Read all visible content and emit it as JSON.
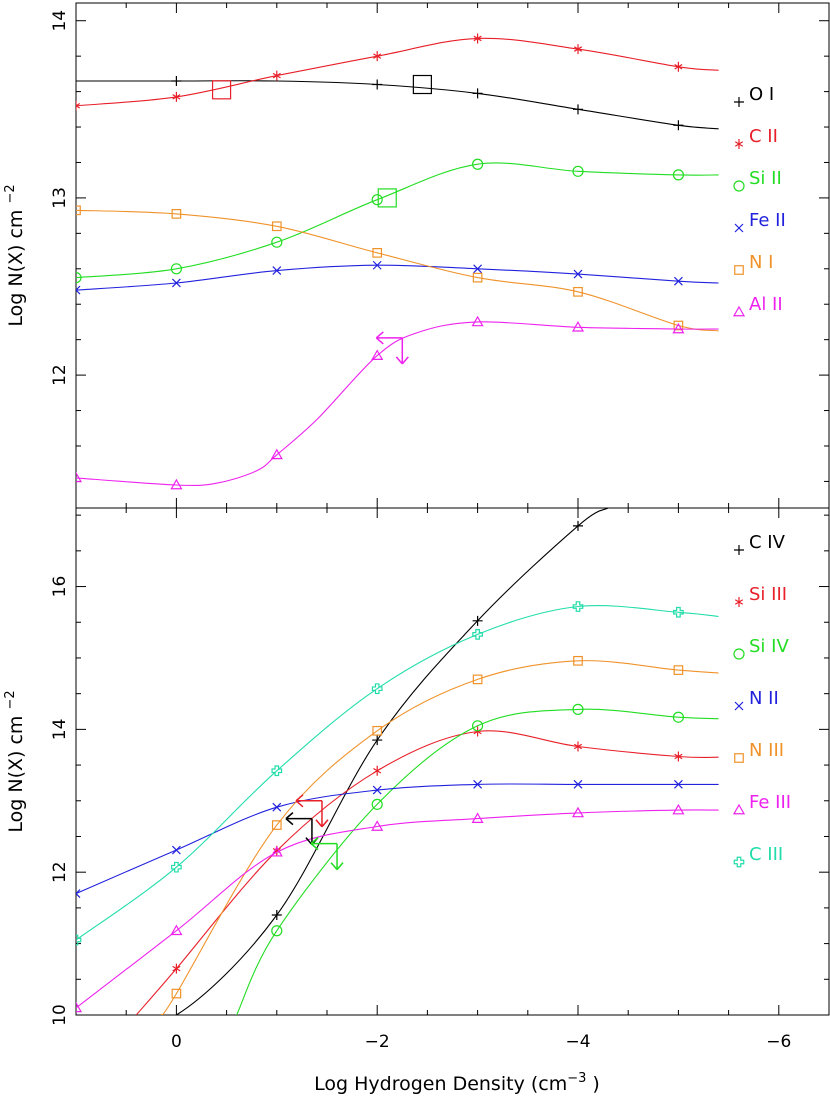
{
  "chart_data": [
    {
      "type": "line",
      "panel": "top",
      "ylabel": "Log N(X) cm",
      "ylabel_exponent": "−2",
      "xlim": [
        1,
        -6.5
      ],
      "ylim": [
        11.25,
        14.1
      ],
      "x_ticks": [
        0,
        -2,
        -4,
        -6
      ],
      "y_tick_labels": [
        {
          "value": 12,
          "label": "12"
        },
        {
          "value": 13,
          "label": "13"
        },
        {
          "value": 14,
          "label": "14"
        }
      ],
      "y_minor_step": 0.2,
      "series": [
        {
          "name": "O I",
          "label": "O I",
          "marker": "plus",
          "color": "#000000",
          "x": [
            1,
            0,
            -1,
            -2,
            -3,
            -4,
            -5,
            -5.4
          ],
          "y": [
            13.66,
            13.66,
            13.66,
            13.64,
            13.59,
            13.5,
            13.41,
            13.39
          ],
          "mark_x": [
            0,
            -2,
            -3,
            -4,
            -5
          ]
        },
        {
          "name": "C II",
          "label": "C II",
          "marker": "asterisk",
          "color": "#e8202a",
          "x": [
            1,
            0,
            -1,
            -2,
            -3,
            -4,
            -5,
            -5.4
          ],
          "y": [
            13.52,
            13.57,
            13.69,
            13.8,
            13.9,
            13.84,
            13.74,
            13.72
          ],
          "mark_x": [
            1,
            0,
            -1,
            -2,
            -3,
            -4,
            -5
          ]
        },
        {
          "name": "Si II",
          "label": "Si II",
          "marker": "circle",
          "color": "#22dd22",
          "x": [
            1,
            0,
            -1,
            -2,
            -3,
            -4,
            -5,
            -5.4
          ],
          "y": [
            12.55,
            12.6,
            12.75,
            12.99,
            13.19,
            13.15,
            13.13,
            13.13
          ],
          "mark_x": [
            1,
            0,
            -1,
            -2,
            -3,
            -4,
            -5
          ]
        },
        {
          "name": "Fe II",
          "label": "Fe II",
          "marker": "cross",
          "color": "#2222dd",
          "x": [
            1,
            0,
            -1,
            -2,
            -3,
            -4,
            -5,
            -5.4
          ],
          "y": [
            12.48,
            12.52,
            12.59,
            12.62,
            12.6,
            12.57,
            12.53,
            12.52
          ],
          "mark_x": [
            1,
            0,
            -1,
            -2,
            -3,
            -4,
            -5
          ]
        },
        {
          "name": "N I",
          "label": "N I",
          "marker": "square",
          "color": "#f0922a",
          "x": [
            1,
            0,
            -1,
            -2,
            -3,
            -4,
            -5,
            -5.4
          ],
          "y": [
            12.93,
            12.91,
            12.84,
            12.69,
            12.55,
            12.47,
            12.28,
            12.25
          ],
          "mark_x": [
            1,
            0,
            -1,
            -2,
            -3,
            -4,
            -5
          ]
        },
        {
          "name": "Al II",
          "label": "Al II",
          "marker": "triangle",
          "color": "#ee22ee",
          "x": [
            1,
            0,
            -0.4,
            -0.8,
            -1,
            -1.4,
            -2,
            -2.4,
            -3,
            -4,
            -5,
            -5.4
          ],
          "y": [
            11.42,
            11.38,
            11.39,
            11.46,
            11.55,
            11.75,
            12.11,
            12.24,
            12.3,
            12.27,
            12.26,
            12.26
          ],
          "mark_x": [
            1,
            0,
            -1,
            -2,
            -3,
            -4,
            -5
          ]
        }
      ],
      "annotations": [
        {
          "type": "big-square",
          "x": -0.45,
          "y": 13.61,
          "color": "#e8202a"
        },
        {
          "type": "big-square",
          "x": -2.45,
          "y": 13.64,
          "color": "#000000"
        },
        {
          "type": "big-square",
          "x": -2.1,
          "y": 13.0,
          "color": "#22dd22"
        },
        {
          "type": "limit",
          "x": -2.25,
          "y": 12.21,
          "color": "#ee22ee"
        }
      ]
    },
    {
      "type": "line",
      "panel": "bottom",
      "xlabel": "Log Hydrogen Density (cm",
      "xlabel_exponent": "−3",
      "xlabel_close": " )",
      "ylabel": "Log N(X) cm",
      "ylabel_exponent": "−2",
      "xlim": [
        1,
        -6.5
      ],
      "ylim": [
        10,
        17.1
      ],
      "x_ticks": [
        0,
        -2,
        -4,
        -6
      ],
      "x_tick_labels": [
        "0",
        "−2",
        "−4",
        "−6"
      ],
      "y_tick_labels": [
        {
          "value": 10,
          "label": "10"
        },
        {
          "value": 12,
          "label": "12"
        },
        {
          "value": 14,
          "label": "14"
        },
        {
          "value": 16,
          "label": "16"
        }
      ],
      "y_minor_step": 0.5,
      "series": [
        {
          "name": "C IV",
          "label": "C IV",
          "marker": "plus",
          "color": "#000000",
          "x": [
            0.6,
            0,
            -1,
            -2,
            -3,
            -4,
            -4.3
          ],
          "y": [
            10,
            10,
            11.4,
            13.85,
            15.52,
            16.85,
            17.1
          ],
          "mark_x": [
            -1,
            -2,
            -3,
            -4
          ]
        },
        {
          "name": "Si III",
          "label": "Si III",
          "marker": "asterisk",
          "color": "#e8202a",
          "x": [
            0.4,
            0,
            -1,
            -2,
            -3,
            -4,
            -5,
            -5.4
          ],
          "y": [
            10,
            10.65,
            12.3,
            13.42,
            13.97,
            13.76,
            13.62,
            13.61
          ],
          "mark_x": [
            0,
            -1,
            -2,
            -3,
            -4,
            -5
          ]
        },
        {
          "name": "Si IV",
          "label": "Si IV",
          "marker": "circle",
          "color": "#22dd22",
          "x": [
            -0.6,
            -1,
            -2,
            -3,
            -4,
            -5,
            -5.4
          ],
          "y": [
            10,
            11.18,
            12.95,
            14.05,
            14.28,
            14.17,
            14.15
          ],
          "mark_x": [
            -1,
            -2,
            -3,
            -4,
            -5
          ]
        },
        {
          "name": "N II",
          "label": "N II",
          "marker": "cross",
          "color": "#2222dd",
          "x": [
            1,
            0,
            -1,
            -2,
            -3,
            -4,
            -5,
            -5.4
          ],
          "y": [
            11.7,
            12.31,
            12.91,
            13.15,
            13.23,
            13.23,
            13.23,
            13.23
          ],
          "mark_x": [
            1,
            0,
            -1,
            -2,
            -3,
            -4,
            -5
          ]
        },
        {
          "name": "N III",
          "label": "N III",
          "marker": "square",
          "color": "#f0922a",
          "x": [
            0.15,
            0,
            -1,
            -2,
            -3,
            -4,
            -5,
            -5.4
          ],
          "y": [
            10,
            10.3,
            12.66,
            13.98,
            14.7,
            14.96,
            14.83,
            14.79
          ],
          "mark_x": [
            0,
            -1,
            -2,
            -3,
            -4,
            -5
          ]
        },
        {
          "name": "Fe III",
          "label": "Fe III",
          "marker": "triangle",
          "color": "#ee22ee",
          "x": [
            1,
            0,
            -1,
            -2,
            -3,
            -4,
            -5,
            -5.4
          ],
          "y": [
            10.1,
            11.18,
            12.28,
            12.64,
            12.75,
            12.83,
            12.87,
            12.87
          ],
          "mark_x": [
            1,
            0,
            -1,
            -2,
            -3,
            -4,
            -5
          ]
        },
        {
          "name": "C III",
          "label": "C III",
          "marker": "circle-plus",
          "color": "#22ddaa",
          "x": [
            1,
            0,
            -1,
            -2,
            -3,
            -4,
            -5,
            -5.4
          ],
          "y": [
            11.05,
            12.07,
            13.42,
            14.57,
            15.33,
            15.72,
            15.64,
            15.58
          ],
          "mark_x": [
            1,
            0,
            -1,
            -2,
            -3,
            -4,
            -5
          ]
        }
      ],
      "annotations": [
        {
          "type": "limit",
          "x": -1.45,
          "y": 13.0,
          "color": "#e8202a"
        },
        {
          "type": "limit",
          "x": -1.35,
          "y": 12.75,
          "color": "#000000"
        },
        {
          "type": "limit",
          "x": -1.6,
          "y": 12.4,
          "color": "#22dd22"
        }
      ]
    }
  ]
}
